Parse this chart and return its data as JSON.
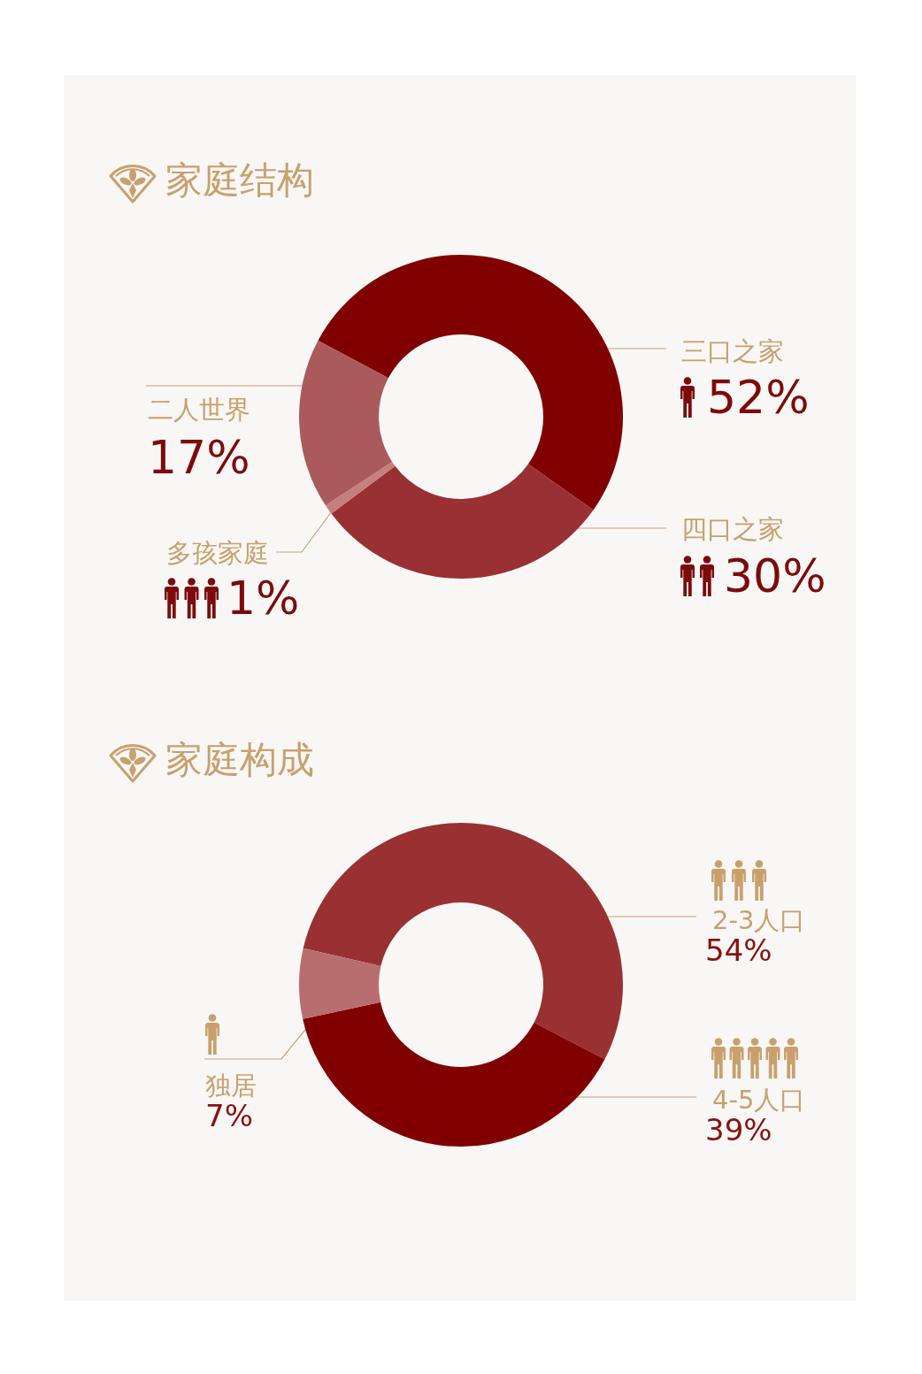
{
  "chart_data": [
    {
      "type": "donut",
      "title": "家庭结构",
      "categories": [
        "三口之家",
        "四口之家",
        "多孩家庭",
        "二人世界"
      ],
      "values": [
        52,
        30,
        1,
        17
      ],
      "colors": [
        "#800000",
        "#993033",
        "#c4807f",
        "#aa5a5a"
      ],
      "value_labels": [
        "52%",
        "30%",
        "1%",
        "17%"
      ]
    },
    {
      "type": "donut",
      "title": "家庭构成",
      "categories": [
        "2-3人口",
        "4-5人口",
        "独居"
      ],
      "values": [
        54,
        39,
        7
      ],
      "colors": [
        "#993133",
        "#800000",
        "#b86e6e"
      ],
      "value_labels": [
        "54%",
        "39%",
        "7%"
      ]
    }
  ]
}
